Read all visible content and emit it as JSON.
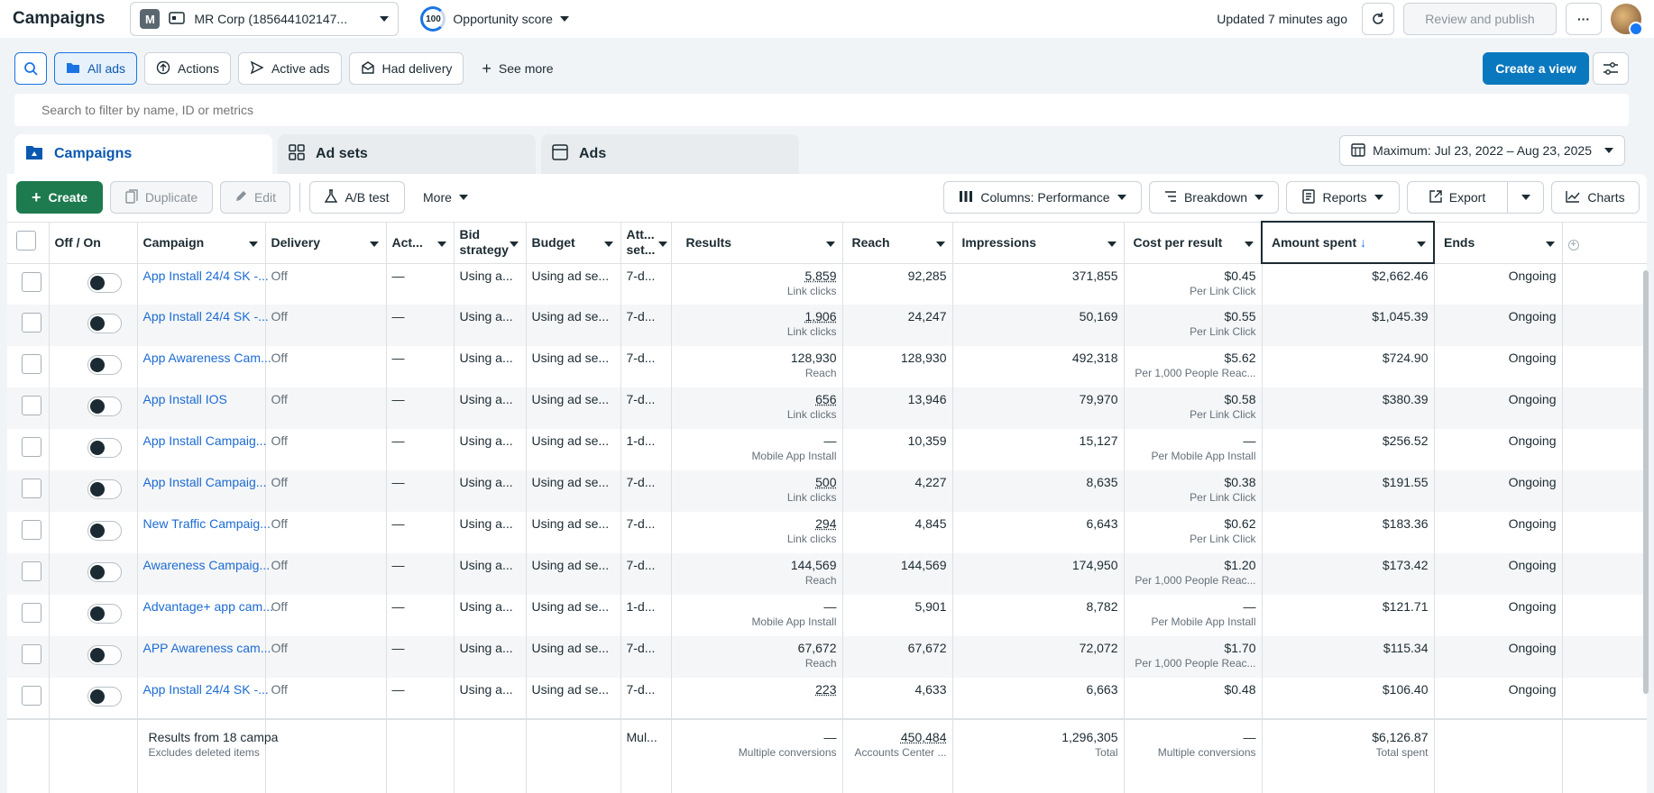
{
  "header": {
    "title": "Campaigns",
    "account_badge": "M",
    "account_name": "MR Corp (185644102147...",
    "opportunity_value": "100",
    "opportunity_label": "Opportunity score",
    "updated": "Updated 7 minutes ago",
    "review_label": "Review and publish",
    "more": "···"
  },
  "filters": {
    "all_ads": "All ads",
    "actions": "Actions",
    "active_ads": "Active ads",
    "had_delivery": "Had delivery",
    "see_more": "See more",
    "create_view": "Create a view"
  },
  "search": {
    "placeholder": "Search to filter by name, ID or metrics"
  },
  "tabs": [
    {
      "label": "Campaigns"
    },
    {
      "label": "Ad sets"
    },
    {
      "label": "Ads"
    }
  ],
  "date_range": "Maximum: Jul 23, 2022 – Aug 23, 2025",
  "toolbar": {
    "create": "Create",
    "duplicate": "Duplicate",
    "edit": "Edit",
    "ab_test": "A/B test",
    "more": "More",
    "columns": "Columns: Performance",
    "breakdown": "Breakdown",
    "reports": "Reports",
    "export": "Export",
    "charts": "Charts"
  },
  "columns": {
    "off_on": "Off / On",
    "campaign": "Campaign",
    "delivery": "Delivery",
    "actions": "Act...",
    "bid_strategy_1": "Bid",
    "bid_strategy_2": "strategy",
    "budget": "Budget",
    "attribution_1": "Att...",
    "attribution_2": "set...",
    "results": "Results",
    "reach": "Reach",
    "impressions": "Impressions",
    "cost_per_result": "Cost per result",
    "amount_spent": "Amount spent",
    "sort_arrow": "↓",
    "ends": "Ends"
  },
  "rows": [
    {
      "campaign": "App Install 24/4 SK -...",
      "delivery": "Off",
      "actions": "—",
      "bid": "Using a...",
      "budget": "Using ad se...",
      "attr": "7-d...",
      "results": "5,859",
      "results_sub": "Link clicks",
      "reach": "92,285",
      "impressions": "371,855",
      "cpr": "$0.45",
      "cpr_sub": "Per Link Click",
      "spent": "$2,662.46",
      "ends": "Ongoing"
    },
    {
      "campaign": "App Install 24/4 SK -...",
      "delivery": "Off",
      "actions": "—",
      "bid": "Using a...",
      "budget": "Using ad se...",
      "attr": "7-d...",
      "results": "1,906",
      "results_sub": "Link clicks",
      "reach": "24,247",
      "impressions": "50,169",
      "cpr": "$0.55",
      "cpr_sub": "Per Link Click",
      "spent": "$1,045.39",
      "ends": "Ongoing"
    },
    {
      "campaign": "App Awareness Cam...",
      "delivery": "Off",
      "actions": "—",
      "bid": "Using a...",
      "budget": "Using ad se...",
      "attr": "7-d...",
      "results": "128,930",
      "results_sub": "Reach",
      "reach": "128,930",
      "impressions": "492,318",
      "cpr": "$5.62",
      "cpr_sub": "Per 1,000 People Reac...",
      "spent": "$724.90",
      "ends": "Ongoing"
    },
    {
      "campaign": "App Install IOS",
      "delivery": "Off",
      "actions": "—",
      "bid": "Using a...",
      "budget": "Using ad se...",
      "attr": "7-d...",
      "results": "656",
      "results_sub": "Link clicks",
      "reach": "13,946",
      "impressions": "79,970",
      "cpr": "$0.58",
      "cpr_sub": "Per Link Click",
      "spent": "$380.39",
      "ends": "Ongoing"
    },
    {
      "campaign": "App Install Campaig...",
      "delivery": "Off",
      "actions": "—",
      "bid": "Using a...",
      "budget": "Using ad se...",
      "attr": "1-d...",
      "results": "—",
      "results_sub": "Mobile App Install",
      "reach": "10,359",
      "impressions": "15,127",
      "cpr": "—",
      "cpr_sub": "Per Mobile App Install",
      "spent": "$256.52",
      "ends": "Ongoing"
    },
    {
      "campaign": "App Install Campaig...",
      "delivery": "Off",
      "actions": "—",
      "bid": "Using a...",
      "budget": "Using ad se...",
      "attr": "7-d...",
      "results": "500",
      "results_sub": "Link clicks",
      "reach": "4,227",
      "impressions": "8,635",
      "cpr": "$0.38",
      "cpr_sub": "Per Link Click",
      "spent": "$191.55",
      "ends": "Ongoing"
    },
    {
      "campaign": "New Traffic Campaig...",
      "delivery": "Off",
      "actions": "—",
      "bid": "Using a...",
      "budget": "Using ad se...",
      "attr": "7-d...",
      "results": "294",
      "results_sub": "Link clicks",
      "reach": "4,845",
      "impressions": "6,643",
      "cpr": "$0.62",
      "cpr_sub": "Per Link Click",
      "spent": "$183.36",
      "ends": "Ongoing"
    },
    {
      "campaign": "Awareness Campaig...",
      "delivery": "Off",
      "actions": "—",
      "bid": "Using a...",
      "budget": "Using ad se...",
      "attr": "7-d...",
      "results": "144,569",
      "results_sub": "Reach",
      "reach": "144,569",
      "impressions": "174,950",
      "cpr": "$1.20",
      "cpr_sub": "Per 1,000 People Reac...",
      "spent": "$173.42",
      "ends": "Ongoing"
    },
    {
      "campaign": "Advantage+ app cam...",
      "delivery": "Off",
      "actions": "—",
      "bid": "Using a...",
      "budget": "Using ad se...",
      "attr": "1-d...",
      "results": "—",
      "results_sub": "Mobile App Install",
      "reach": "5,901",
      "impressions": "8,782",
      "cpr": "—",
      "cpr_sub": "Per Mobile App Install",
      "spent": "$121.71",
      "ends": "Ongoing"
    },
    {
      "campaign": "APP Awareness cam...",
      "delivery": "Off",
      "actions": "—",
      "bid": "Using a...",
      "budget": "Using ad se...",
      "attr": "7-d...",
      "results": "67,672",
      "results_sub": "Reach",
      "reach": "67,672",
      "impressions": "72,072",
      "cpr": "$1.70",
      "cpr_sub": "Per 1,000 People Reac...",
      "spent": "$115.34",
      "ends": "Ongoing"
    },
    {
      "campaign": "App Install 24/4 SK -...",
      "delivery": "Off",
      "actions": "—",
      "bid": "Using a...",
      "budget": "Using ad se...",
      "attr": "7-d...",
      "results": "223",
      "results_sub": "",
      "reach": "4,633",
      "impressions": "6,663",
      "cpr": "$0.48",
      "cpr_sub": "",
      "spent": "$106.40",
      "ends": "Ongoing"
    }
  ],
  "footer": {
    "campaign": "Results from 18 campa",
    "campaign_sub": "Excludes deleted items",
    "attr": "Mul...",
    "results": "—",
    "results_sub": "Multiple conversions",
    "reach": "450,484",
    "reach_sub": "Accounts Center ...",
    "impressions": "1,296,305",
    "impressions_sub": "Total",
    "cpr": "—",
    "cpr_sub": "Multiple conversions",
    "spent": "$6,126.87",
    "spent_sub": "Total spent"
  },
  "colors": {
    "primary": "#0a78be",
    "create": "#1e7a4f",
    "link": "#1b6bd3"
  }
}
